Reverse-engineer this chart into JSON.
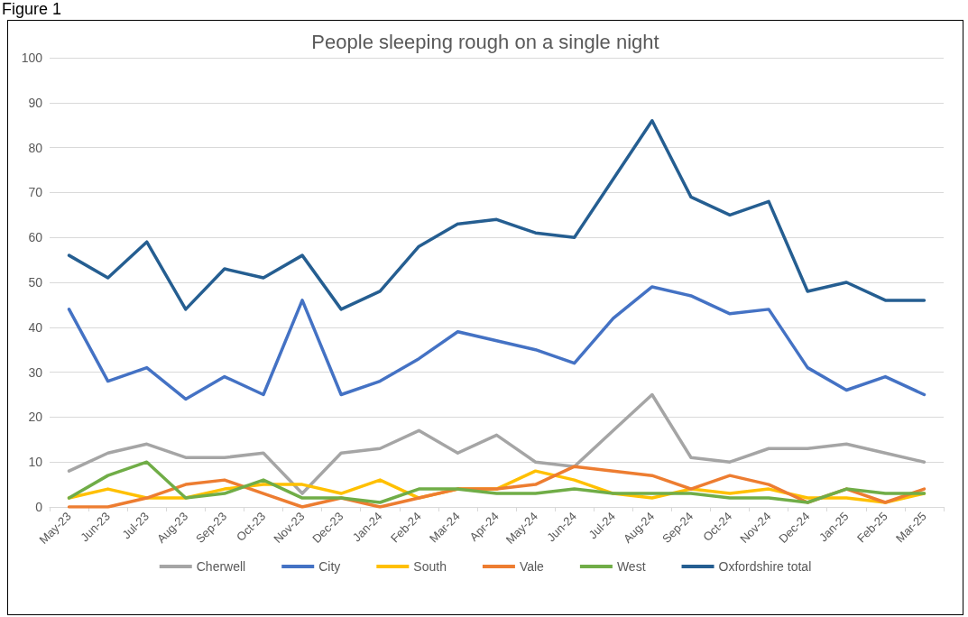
{
  "chart_data": {
    "type": "line",
    "title": "People sleeping rough on a single night",
    "annotations": [
      "Figure 1"
    ],
    "categories": [
      "May-23",
      "Jun-23",
      "Jul-23",
      "Aug-23",
      "Sep-23",
      "Oct-23",
      "Nov-23",
      "Dec-23",
      "Jan-24",
      "Feb-24",
      "Mar-24",
      "Apr-24",
      "May-24",
      "Jun-24",
      "Jul-24",
      "Aug-24",
      "Sep-24",
      "Oct-24",
      "Nov-24",
      "Dec-24",
      "Jan-25",
      "Feb-25",
      "Mar-25"
    ],
    "series": [
      {
        "name": "Cherwell",
        "color": "#a5a5a5",
        "values": [
          8,
          12,
          14,
          11,
          11,
          12,
          3,
          12,
          13,
          17,
          12,
          16,
          10,
          9,
          17,
          25,
          11,
          10,
          13,
          13,
          14,
          12,
          10
        ]
      },
      {
        "name": "City",
        "color": "#4472c4",
        "values": [
          44,
          28,
          31,
          24,
          29,
          25,
          46,
          25,
          28,
          33,
          39,
          37,
          35,
          32,
          42,
          49,
          47,
          43,
          44,
          31,
          26,
          29,
          25
        ]
      },
      {
        "name": "South",
        "color": "#ffc000",
        "values": [
          2,
          4,
          2,
          2,
          4,
          5,
          5,
          3,
          6,
          2,
          4,
          4,
          8,
          6,
          3,
          2,
          4,
          3,
          4,
          2,
          2,
          1,
          3
        ]
      },
      {
        "name": "Vale",
        "color": "#ed7d31",
        "values": [
          0,
          0,
          2,
          5,
          6,
          3,
          0,
          2,
          0,
          2,
          4,
          4,
          5,
          9,
          8,
          7,
          4,
          7,
          5,
          1,
          4,
          1,
          4
        ]
      },
      {
        "name": "West",
        "color": "#70ad47",
        "values": [
          2,
          7,
          10,
          2,
          3,
          6,
          2,
          2,
          1,
          4,
          4,
          3,
          3,
          4,
          3,
          3,
          3,
          2,
          2,
          1,
          4,
          3,
          3
        ]
      },
      {
        "name": "Oxfordshire total",
        "color": "#255e91",
        "values": [
          56,
          51,
          59,
          44,
          53,
          51,
          56,
          44,
          48,
          58,
          63,
          64,
          61,
          60,
          73,
          86,
          69,
          65,
          68,
          48,
          50,
          46,
          46
        ]
      }
    ],
    "ylim": [
      0,
      100
    ],
    "yticks": [
      0,
      10,
      20,
      30,
      40,
      50,
      60,
      70,
      80,
      90,
      100
    ],
    "grid": "y",
    "legend": "bottom",
    "marker": "none",
    "line_style": "solid"
  }
}
